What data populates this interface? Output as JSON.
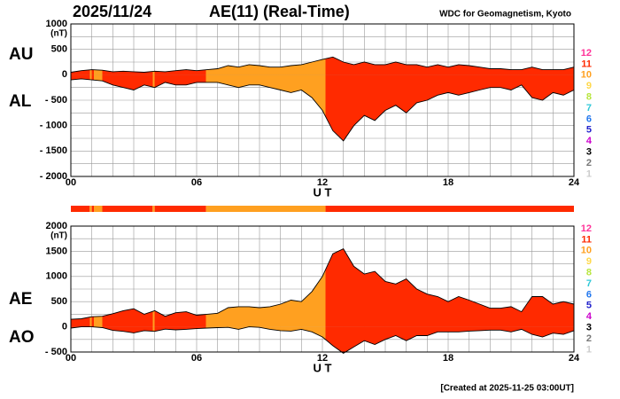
{
  "header": {
    "date": "2025/11/24",
    "title": "AE(11) (Real-Time)",
    "source": "WDC for Geomagnetism, Kyoto",
    "footer": "[Created at 2025-11-25 03:00UT]"
  },
  "chart_data": [
    {
      "type": "area",
      "ylabel": "(nT)",
      "xlabel": "U T",
      "x": [
        0,
        0.5,
        1,
        1.5,
        2,
        2.5,
        3,
        3.5,
        4,
        4.5,
        5,
        5.5,
        6,
        6.5,
        7,
        7.5,
        8,
        8.5,
        9,
        9.5,
        10,
        10.5,
        11,
        11.5,
        12,
        12.5,
        13,
        13.5,
        14,
        14.5,
        15,
        15.5,
        16,
        16.5,
        17,
        17.5,
        18,
        18.5,
        19,
        19.5,
        20,
        20.5,
        21,
        21.5,
        22,
        22.5,
        23,
        23.5,
        24
      ],
      "xlim": [
        0,
        24
      ],
      "xticks": [
        {
          "value": 0,
          "label": "00"
        },
        {
          "value": 6,
          "label": "06"
        },
        12,
        18,
        24
      ],
      "xgrid": [
        0,
        1,
        2,
        3,
        4,
        5,
        6,
        7,
        8,
        9,
        10,
        11,
        12,
        13,
        14,
        15,
        16,
        17,
        18,
        19,
        20,
        21,
        22,
        23,
        24
      ],
      "ylim": [
        -2000,
        1000
      ],
      "yticks": [
        1000,
        500,
        0,
        {
          "value": -500,
          "label": "- 500"
        },
        {
          "value": -1000,
          "label": "- 1000"
        },
        {
          "value": -1500,
          "label": "- 1500"
        },
        {
          "value": -2000,
          "label": "- 2000"
        }
      ],
      "ygrid": [
        1000,
        750,
        500,
        250,
        0,
        -250,
        -500,
        -750,
        -1000,
        -1250,
        -1500,
        -1750,
        -2000
      ],
      "series": [
        {
          "name": "AU",
          "values": [
            50,
            80,
            100,
            90,
            60,
            70,
            60,
            50,
            70,
            60,
            80,
            100,
            80,
            100,
            120,
            180,
            150,
            200,
            180,
            150,
            150,
            180,
            200,
            250,
            300,
            350,
            250,
            200,
            250,
            200,
            200,
            250,
            200,
            200,
            150,
            200,
            150,
            200,
            180,
            150,
            120,
            120,
            100,
            100,
            150,
            100,
            100,
            100,
            150
          ]
        },
        {
          "name": "AL",
          "values": [
            -100,
            -80,
            -100,
            -120,
            -200,
            -250,
            -300,
            -200,
            -250,
            -150,
            -200,
            -200,
            -150,
            -150,
            -150,
            -200,
            -250,
            -200,
            -200,
            -250,
            -300,
            -350,
            -300,
            -450,
            -700,
            -1100,
            -1300,
            -1000,
            -800,
            -900,
            -700,
            -600,
            -750,
            -550,
            -500,
            -400,
            -350,
            -400,
            -350,
            -300,
            -250,
            -250,
            -300,
            -200,
            -450,
            -500,
            -350,
            -400,
            -300
          ]
        }
      ],
      "station_segments": [
        {
          "start": 0,
          "end": 0.9,
          "stations": 11
        },
        {
          "start": 0.9,
          "end": 1.0,
          "stations": 10
        },
        {
          "start": 1.0,
          "end": 1.1,
          "stations": 11
        },
        {
          "start": 1.1,
          "end": 1.5,
          "stations": 10
        },
        {
          "start": 1.5,
          "end": 3.9,
          "stations": 11
        },
        {
          "start": 3.9,
          "end": 4.0,
          "stations": 10
        },
        {
          "start": 4.0,
          "end": 6.45,
          "stations": 11
        },
        {
          "start": 6.45,
          "end": 12.15,
          "stations": 10
        },
        {
          "start": 12.15,
          "end": 24,
          "stations": 11
        }
      ],
      "legend": [
        {
          "label": "12",
          "color": "#ff3399"
        },
        {
          "label": "11",
          "color": "#ff2a00"
        },
        {
          "label": "10",
          "color": "#ffa020"
        },
        {
          "label": "9",
          "color": "#ffd84a"
        },
        {
          "label": "8",
          "color": "#b8e640"
        },
        {
          "label": "7",
          "color": "#30c8d8"
        },
        {
          "label": "6",
          "color": "#2277ee"
        },
        {
          "label": "5",
          "color": "#2222cc"
        },
        {
          "label": "4",
          "color": "#cc00cc"
        },
        {
          "label": "3",
          "color": "#000000"
        },
        {
          "label": "2",
          "color": "#777777"
        },
        {
          "label": "1",
          "color": "#cccccc"
        }
      ]
    },
    {
      "type": "area",
      "ylabel": "(nT)",
      "xlabel": "U T",
      "x": [
        0,
        0.5,
        1,
        1.5,
        2,
        2.5,
        3,
        3.5,
        4,
        4.5,
        5,
        5.5,
        6,
        6.5,
        7,
        7.5,
        8,
        8.5,
        9,
        9.5,
        10,
        10.5,
        11,
        11.5,
        12,
        12.5,
        13,
        13.5,
        14,
        14.5,
        15,
        15.5,
        16,
        16.5,
        17,
        17.5,
        18,
        18.5,
        19,
        19.5,
        20,
        20.5,
        21,
        21.5,
        22,
        22.5,
        23,
        23.5,
        24
      ],
      "xlim": [
        0,
        24
      ],
      "xticks": [
        {
          "value": 0,
          "label": "00"
        },
        {
          "value": 6,
          "label": "06"
        },
        12,
        18,
        24
      ],
      "xgrid": [
        0,
        1,
        2,
        3,
        4,
        5,
        6,
        7,
        8,
        9,
        10,
        11,
        12,
        13,
        14,
        15,
        16,
        17,
        18,
        19,
        20,
        21,
        22,
        23,
        24
      ],
      "ylim": [
        -500,
        2000
      ],
      "yticks": [
        2000,
        1500,
        1000,
        500,
        0,
        {
          "value": -500,
          "label": "- 500"
        }
      ],
      "ygrid": [
        2000,
        1750,
        1500,
        1250,
        1000,
        750,
        500,
        250,
        0,
        -250,
        -500
      ],
      "series": [
        {
          "name": "AE",
          "values": [
            150,
            160,
            200,
            210,
            260,
            320,
            360,
            250,
            320,
            210,
            280,
            300,
            230,
            250,
            270,
            380,
            400,
            400,
            380,
            400,
            450,
            530,
            500,
            700,
            1000,
            1450,
            1550,
            1200,
            1050,
            1100,
            900,
            850,
            950,
            750,
            650,
            600,
            500,
            600,
            530,
            450,
            370,
            370,
            400,
            300,
            600,
            600,
            450,
            500,
            450
          ]
        },
        {
          "name": "AO",
          "values": [
            -25,
            0,
            0,
            -15,
            -70,
            -90,
            -120,
            -75,
            -90,
            -45,
            -60,
            -50,
            -35,
            -25,
            -15,
            -10,
            -50,
            0,
            -10,
            -50,
            -75,
            -85,
            -50,
            -100,
            -200,
            -375,
            -525,
            -400,
            -275,
            -350,
            -250,
            -175,
            -275,
            -175,
            -175,
            -100,
            -100,
            -100,
            -85,
            -75,
            -65,
            -65,
            -100,
            -50,
            -150,
            -200,
            -125,
            -150,
            -75
          ]
        }
      ],
      "station_segments": [
        {
          "start": 0,
          "end": 0.9,
          "stations": 11
        },
        {
          "start": 0.9,
          "end": 1.0,
          "stations": 10
        },
        {
          "start": 1.0,
          "end": 1.1,
          "stations": 11
        },
        {
          "start": 1.1,
          "end": 1.5,
          "stations": 10
        },
        {
          "start": 1.5,
          "end": 3.9,
          "stations": 11
        },
        {
          "start": 3.9,
          "end": 4.0,
          "stations": 10
        },
        {
          "start": 4.0,
          "end": 6.45,
          "stations": 11
        },
        {
          "start": 6.45,
          "end": 12.15,
          "stations": 10
        },
        {
          "start": 12.15,
          "end": 24,
          "stations": 11
        }
      ],
      "legend": [
        {
          "label": "12",
          "color": "#ff3399"
        },
        {
          "label": "11",
          "color": "#ff2a00"
        },
        {
          "label": "10",
          "color": "#ffa020"
        },
        {
          "label": "9",
          "color": "#ffd84a"
        },
        {
          "label": "8",
          "color": "#b8e640"
        },
        {
          "label": "7",
          "color": "#30c8d8"
        },
        {
          "label": "6",
          "color": "#2277ee"
        },
        {
          "label": "5",
          "color": "#2222cc"
        },
        {
          "label": "4",
          "color": "#cc00cc"
        },
        {
          "label": "3",
          "color": "#000000"
        },
        {
          "label": "2",
          "color": "#777777"
        },
        {
          "label": "1",
          "color": "#cccccc"
        }
      ]
    }
  ]
}
